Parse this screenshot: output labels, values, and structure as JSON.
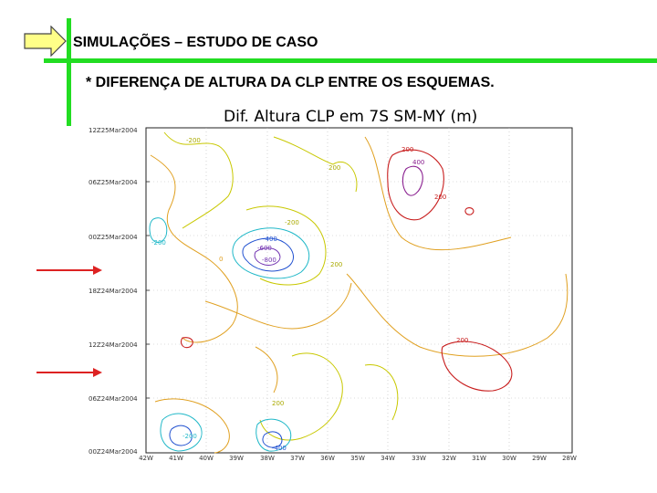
{
  "slide": {
    "title": "SIMULAÇÕES – ESTUDO DE CASO",
    "subtitle": "* DIFERENÇA DE ALTURA DA CLP ENTRE OS ESQUEMAS.",
    "accent_color": "#22dd22",
    "arrow_fill": "#ffff88",
    "pointer_color": "#dd2222"
  },
  "figure": {
    "title": "Dif. Altura CLP em 7S SM-MY (m)",
    "y_ticks": [
      "12Z25Mar2004",
      "06Z25Mar2004",
      "00Z25Mar2004",
      "18Z24Mar2004",
      "12Z24Mar2004",
      "06Z24Mar2004",
      "00Z24Mar2004"
    ],
    "x_ticks": [
      "42W",
      "41W",
      "40W",
      "39W",
      "38W",
      "37W",
      "36W",
      "35W",
      "34W",
      "33W",
      "32W",
      "31W",
      "30W",
      "29W",
      "28W"
    ],
    "contour_labels": [
      "-200",
      "200",
      "400",
      "-400",
      "-600",
      "-800",
      "0",
      "200",
      "-200",
      "200",
      "200",
      "200",
      "-200",
      "-400",
      "200",
      "-200"
    ]
  }
}
